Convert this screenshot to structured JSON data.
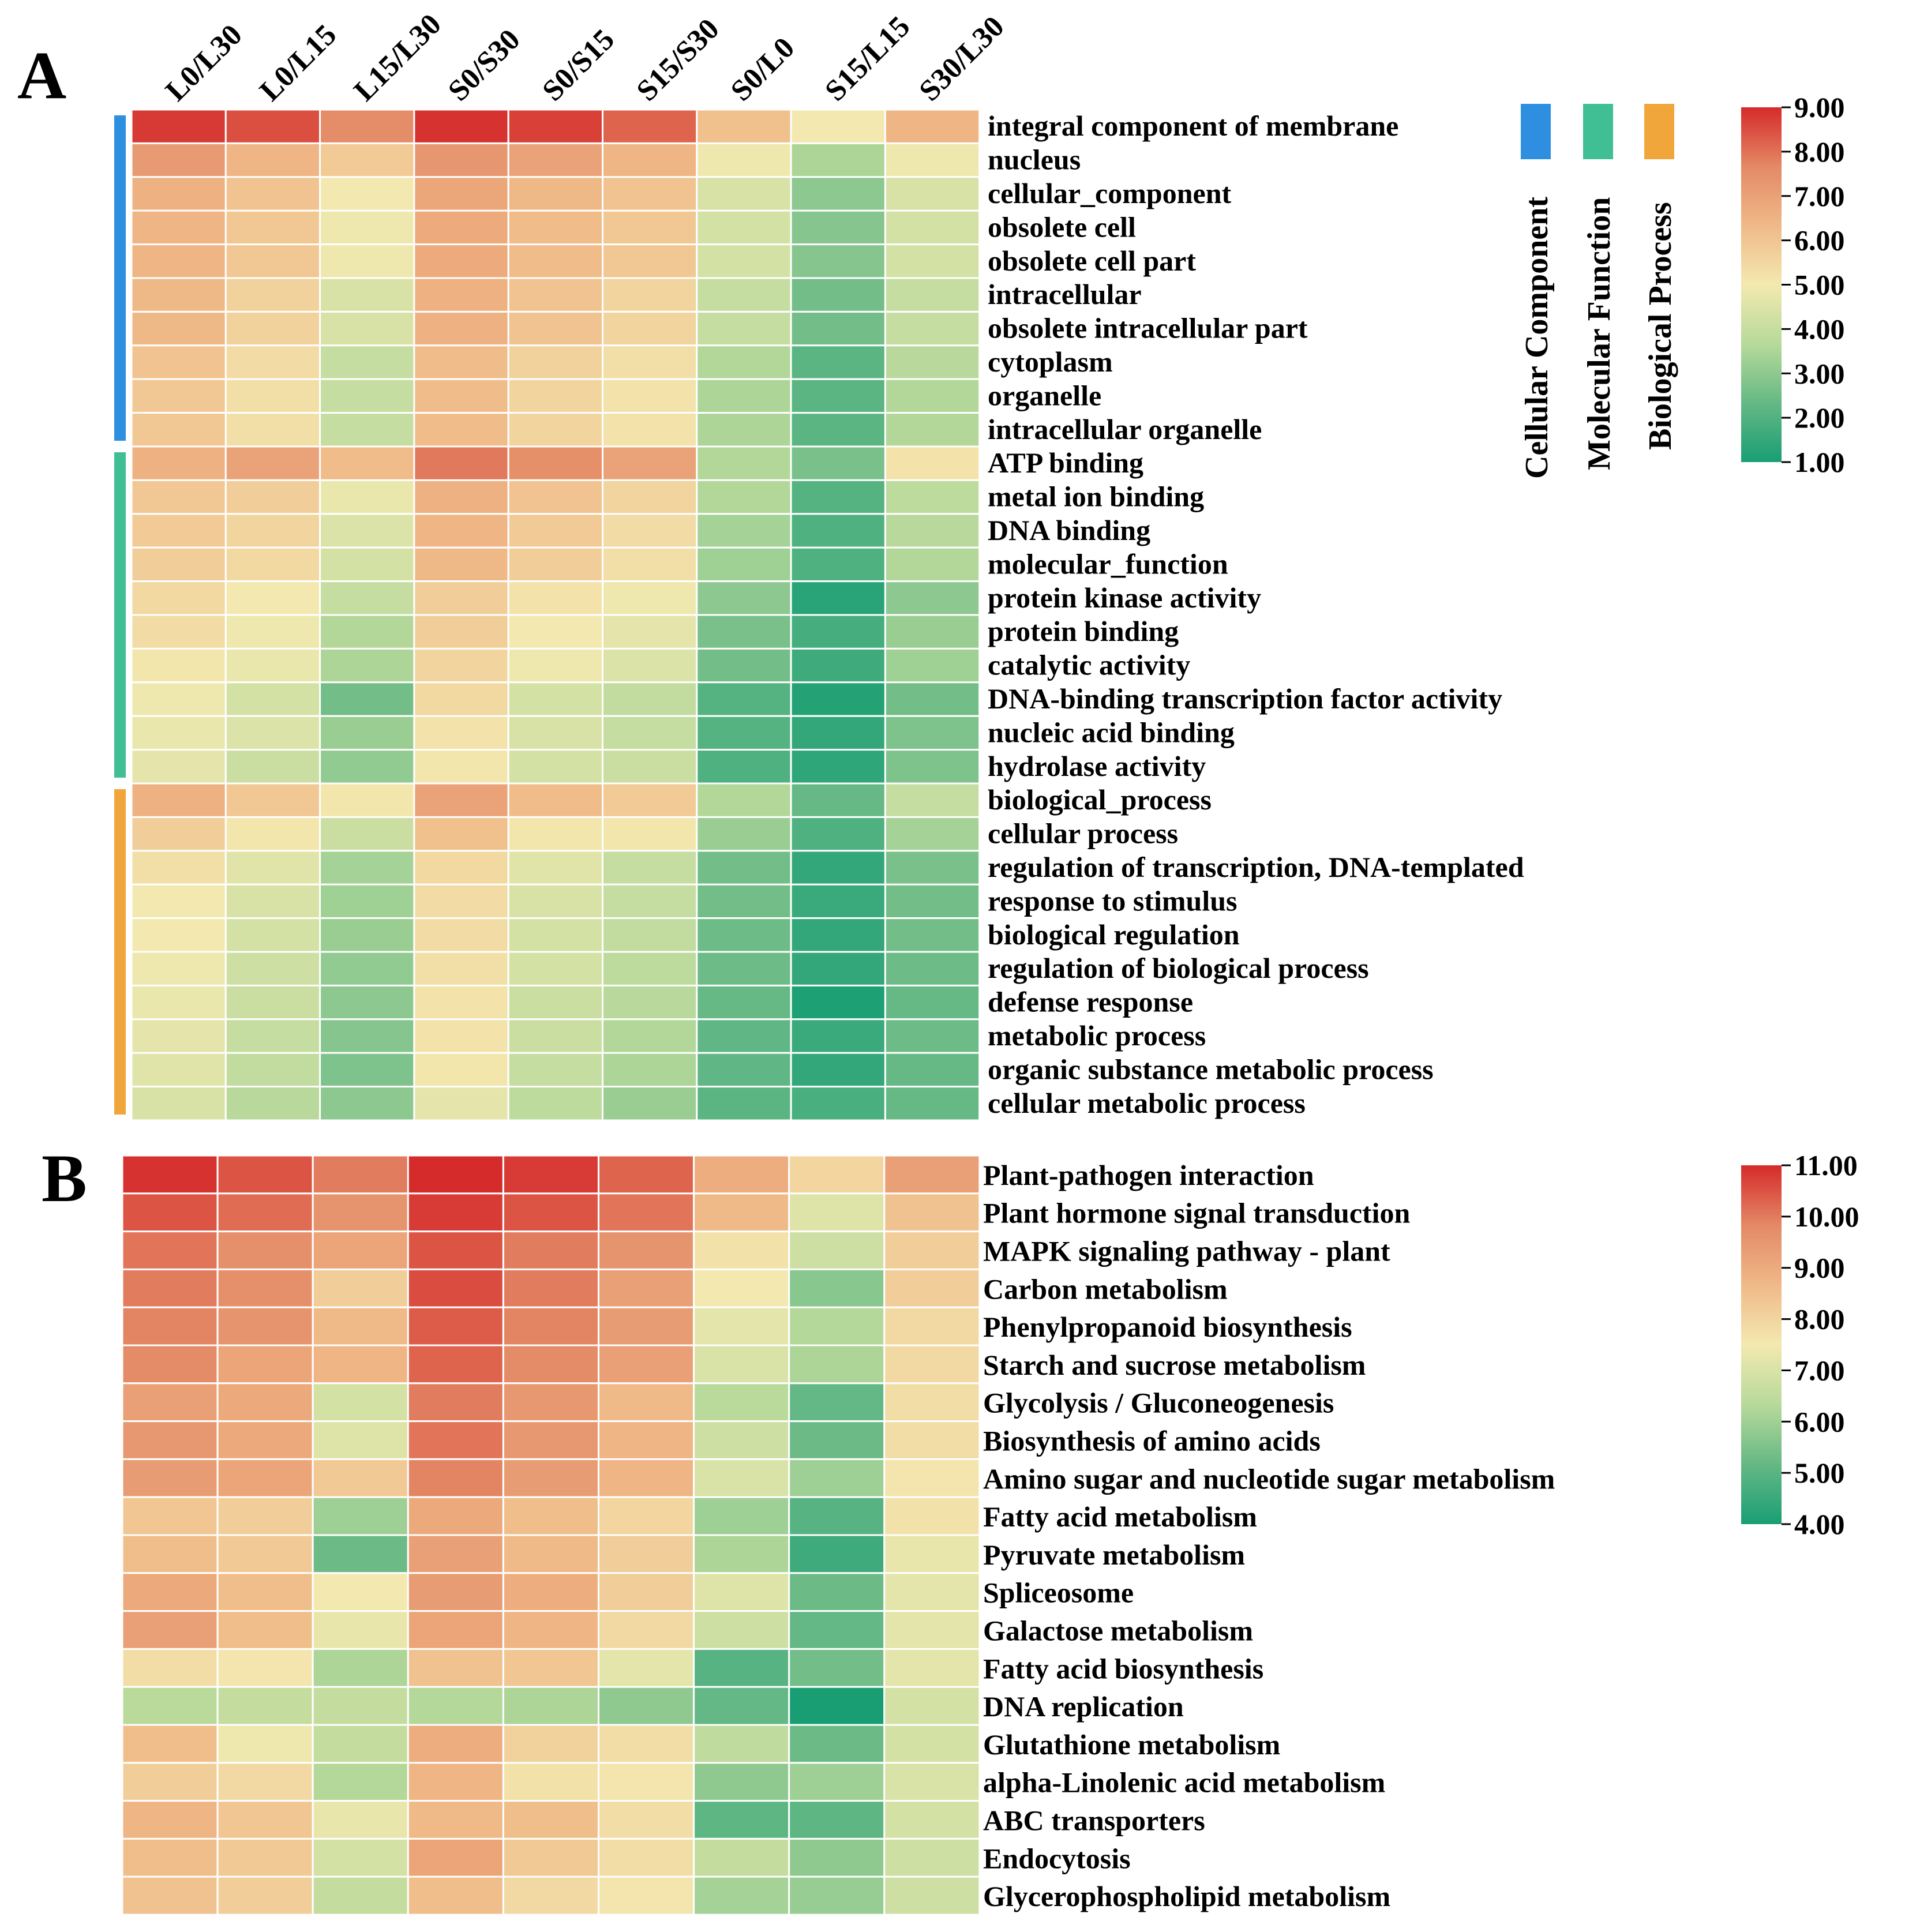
{
  "panels": [
    {
      "letter": "A"
    },
    {
      "letter": "B"
    }
  ],
  "categories_legend": [
    {
      "name": "Cellular Component",
      "color": "#2e8fe0"
    },
    {
      "name": "Molecular Function",
      "color": "#3fbf93"
    },
    {
      "name": "Biological Process",
      "color": "#f0a63a"
    }
  ],
  "colormap": [
    "#199e74",
    "#62b784",
    "#b6d99a",
    "#f3e9b0",
    "#f0bb89",
    "#e48a66",
    "#d52b2b"
  ],
  "chart_data": [
    {
      "type": "heatmap",
      "title": "A",
      "columns": [
        "L0/L30",
        "L0/L15",
        "L15/L30",
        "S0/S30",
        "S0/S15",
        "S15/S30",
        "S0/L0",
        "S15/L15",
        "S30/L30"
      ],
      "rows": [
        {
          "label": "integral component of membrane",
          "category": "Cellular Component",
          "values": [
            8.8,
            8.5,
            7.6,
            8.9,
            8.7,
            8.2,
            6.2,
            5.0,
            6.5
          ]
        },
        {
          "label": "nucleus",
          "category": "Cellular Component",
          "values": [
            7.2,
            6.5,
            5.9,
            7.3,
            7.0,
            6.5,
            4.9,
            3.5,
            4.9
          ]
        },
        {
          "label": "cellular_component",
          "category": "Cellular Component",
          "values": [
            6.6,
            6.1,
            5.0,
            6.9,
            6.4,
            6.1,
            4.4,
            3.0,
            4.4
          ]
        },
        {
          "label": "obsolete cell",
          "category": "Cellular Component",
          "values": [
            6.5,
            6.0,
            4.9,
            6.8,
            6.3,
            6.0,
            4.3,
            2.9,
            4.3
          ]
        },
        {
          "label": "obsolete cell part",
          "category": "Cellular Component",
          "values": [
            6.5,
            6.0,
            4.9,
            6.8,
            6.3,
            6.0,
            4.3,
            2.9,
            4.3
          ]
        },
        {
          "label": "intracellular",
          "category": "Cellular Component",
          "values": [
            6.4,
            5.7,
            4.4,
            6.6,
            6.1,
            5.6,
            4.0,
            2.6,
            4.0
          ]
        },
        {
          "label": "obsolete intracellular part",
          "category": "Cellular Component",
          "values": [
            6.4,
            5.7,
            4.4,
            6.6,
            6.1,
            5.6,
            4.0,
            2.6,
            4.0
          ]
        },
        {
          "label": "cytoplasm",
          "category": "Cellular Component",
          "values": [
            6.1,
            5.4,
            4.0,
            6.3,
            5.7,
            5.3,
            3.6,
            2.2,
            3.7
          ]
        },
        {
          "label": "organelle",
          "category": "Cellular Component",
          "values": [
            6.0,
            5.3,
            4.0,
            6.3,
            5.6,
            5.2,
            3.5,
            2.2,
            3.6
          ]
        },
        {
          "label": "intracellular organelle",
          "category": "Cellular Component",
          "values": [
            6.0,
            5.3,
            4.0,
            6.3,
            5.6,
            5.2,
            3.5,
            2.2,
            3.6
          ]
        },
        {
          "label": "ATP binding",
          "category": "Molecular Function",
          "values": [
            6.6,
            7.0,
            6.3,
            7.9,
            7.5,
            7.0,
            3.6,
            2.7,
            5.2
          ]
        },
        {
          "label": "metal ion binding",
          "category": "Molecular Function",
          "values": [
            6.0,
            5.8,
            4.8,
            6.6,
            6.1,
            5.6,
            3.6,
            2.1,
            3.8
          ]
        },
        {
          "label": "DNA binding",
          "category": "Molecular Function",
          "values": [
            5.9,
            5.6,
            4.5,
            6.5,
            5.9,
            5.4,
            3.4,
            2.0,
            3.7
          ]
        },
        {
          "label": "molecular_function",
          "category": "Molecular Function",
          "values": [
            5.8,
            5.5,
            4.3,
            6.4,
            5.8,
            5.3,
            3.3,
            2.0,
            3.6
          ]
        },
        {
          "label": "protein kinase activity",
          "category": "Molecular Function",
          "values": [
            5.5,
            5.0,
            4.0,
            5.8,
            5.2,
            4.9,
            3.0,
            1.3,
            3.0
          ]
        },
        {
          "label": "protein binding",
          "category": "Molecular Function",
          "values": [
            5.4,
            4.9,
            3.6,
            5.8,
            5.0,
            4.7,
            2.7,
            1.8,
            3.2
          ]
        },
        {
          "label": "catalytic activity",
          "category": "Molecular Function",
          "values": [
            5.1,
            4.8,
            3.5,
            5.6,
            4.9,
            4.5,
            2.6,
            1.7,
            3.3
          ]
        },
        {
          "label": "DNA-binding transcription factor activity",
          "category": "Molecular Function",
          "values": [
            4.9,
            4.3,
            2.6,
            5.5,
            4.3,
            3.9,
            2.1,
            1.2,
            2.6
          ]
        },
        {
          "label": "nucleic acid binding",
          "category": "Molecular Function",
          "values": [
            4.8,
            4.5,
            3.2,
            5.2,
            4.4,
            4.0,
            2.1,
            1.5,
            2.8
          ]
        },
        {
          "label": "hydrolase activity",
          "category": "Molecular Function",
          "values": [
            4.7,
            4.1,
            3.1,
            5.1,
            4.3,
            4.1,
            2.0,
            1.4,
            2.8
          ]
        },
        {
          "label": "biological_process",
          "category": "Biological Process",
          "values": [
            6.6,
            6.0,
            5.1,
            7.0,
            6.3,
            5.9,
            3.6,
            2.4,
            4.0
          ]
        },
        {
          "label": "cellular process",
          "category": "Biological Process",
          "values": [
            5.8,
            5.1,
            4.1,
            6.2,
            5.1,
            5.1,
            3.2,
            2.0,
            3.4
          ]
        },
        {
          "label": "regulation of transcription, DNA-templated",
          "category": "Biological Process",
          "values": [
            5.3,
            4.6,
            3.4,
            5.5,
            4.6,
            4.0,
            2.6,
            1.5,
            2.7
          ]
        },
        {
          "label": "response to stimulus",
          "category": "Biological Process",
          "values": [
            5.0,
            4.4,
            3.3,
            5.4,
            4.4,
            4.0,
            2.6,
            1.6,
            2.6
          ]
        },
        {
          "label": "biological regulation",
          "category": "Biological Process",
          "values": [
            5.0,
            4.3,
            3.2,
            5.4,
            4.3,
            3.9,
            2.5,
            1.5,
            2.6
          ]
        },
        {
          "label": "regulation of biological process",
          "category": "Biological Process",
          "values": [
            4.9,
            4.2,
            3.1,
            5.3,
            4.3,
            3.8,
            2.5,
            1.5,
            2.5
          ]
        },
        {
          "label": "defense response",
          "category": "Biological Process",
          "values": [
            4.8,
            4.1,
            3.0,
            5.2,
            4.1,
            3.7,
            2.4,
            1.1,
            2.4
          ]
        },
        {
          "label": "metabolic process",
          "category": "Biological Process",
          "values": [
            4.7,
            4.0,
            2.9,
            5.2,
            4.1,
            3.6,
            2.3,
            1.6,
            2.5
          ]
        },
        {
          "label": "organic substance metabolic process",
          "category": "Biological Process",
          "values": [
            4.6,
            3.9,
            2.8,
            5.1,
            4.0,
            3.5,
            2.3,
            1.5,
            2.4
          ]
        },
        {
          "label": "cellular metabolic process",
          "category": "Biological Process",
          "values": [
            4.4,
            3.7,
            3.0,
            4.7,
            3.8,
            3.2,
            2.2,
            1.9,
            2.4
          ]
        }
      ],
      "colorbar": {
        "min": 1.0,
        "max": 9.0,
        "ticks": [
          "9.00",
          "8.00",
          "7.00",
          "6.00",
          "5.00",
          "4.00",
          "3.00",
          "2.00",
          "1.00"
        ]
      }
    },
    {
      "type": "heatmap",
      "title": "B",
      "columns": [
        "L0/L30",
        "L0/L15",
        "L15/L30",
        "S0/S30",
        "S0/S15",
        "S15/S30",
        "S0/L0",
        "S15/L15",
        "S30/L30"
      ],
      "rows": [
        {
          "label": "Plant-pathogen interaction",
          "values": [
            10.9,
            10.5,
            10.0,
            11.0,
            10.8,
            10.3,
            9.0,
            8.0,
            9.3
          ]
        },
        {
          "label": "Plant hormone signal transduction",
          "values": [
            10.5,
            10.2,
            9.6,
            10.8,
            10.5,
            10.1,
            8.7,
            7.1,
            8.5
          ]
        },
        {
          "label": "MAPK signaling pathway - plant",
          "values": [
            10.1,
            9.7,
            9.2,
            10.5,
            10.0,
            9.6,
            7.7,
            6.8,
            8.2
          ]
        },
        {
          "label": "Carbon metabolism",
          "values": [
            10.0,
            9.7,
            8.2,
            10.6,
            10.0,
            9.3,
            7.5,
            5.7,
            8.2
          ]
        },
        {
          "label": "Phenylpropanoid biosynthesis",
          "values": [
            9.9,
            9.6,
            8.7,
            10.4,
            9.9,
            9.4,
            7.2,
            6.3,
            7.9
          ]
        },
        {
          "label": "Starch and sucrose metabolism",
          "values": [
            9.8,
            9.2,
            8.8,
            10.3,
            9.8,
            9.3,
            7.0,
            6.2,
            7.9
          ]
        },
        {
          "label": "Glycolysis / Gluconeogenesis",
          "values": [
            9.3,
            9.1,
            6.9,
            10.0,
            9.5,
            8.7,
            6.4,
            5.2,
            7.8
          ]
        },
        {
          "label": "Biosynthesis of amino acids",
          "values": [
            9.5,
            9.1,
            7.1,
            10.1,
            9.5,
            8.8,
            6.8,
            5.3,
            7.8
          ]
        },
        {
          "label": "Amino sugar and nucleotide sugar metabolism",
          "values": [
            9.4,
            9.2,
            8.3,
            9.9,
            9.4,
            8.8,
            7.0,
            6.0,
            7.6
          ]
        },
        {
          "label": "Fatty acid metabolism",
          "values": [
            8.4,
            8.2,
            6.0,
            9.1,
            8.6,
            8.0,
            6.0,
            5.0,
            7.7
          ]
        },
        {
          "label": "Pyruvate metabolism",
          "values": [
            8.6,
            8.3,
            5.3,
            9.3,
            8.7,
            8.2,
            6.2,
            4.6,
            7.3
          ]
        },
        {
          "label": "Spliceosome",
          "values": [
            9.1,
            8.6,
            7.5,
            9.4,
            9.0,
            8.2,
            7.1,
            5.3,
            7.2
          ]
        },
        {
          "label": "Galactose metabolism",
          "values": [
            9.3,
            8.6,
            7.3,
            9.2,
            8.8,
            7.9,
            6.8,
            5.2,
            7.2
          ]
        },
        {
          "label": "Fatty acid biosynthesis",
          "values": [
            7.8,
            7.6,
            6.2,
            8.5,
            8.4,
            7.2,
            5.0,
            5.4,
            7.2
          ]
        },
        {
          "label": "DNA replication",
          "values": [
            6.4,
            6.6,
            6.6,
            6.3,
            6.2,
            5.8,
            5.2,
            4.0,
            6.9
          ]
        },
        {
          "label": "Glutathione metabolism",
          "values": [
            8.6,
            7.4,
            6.6,
            9.0,
            8.1,
            7.8,
            6.5,
            5.3,
            6.9
          ]
        },
        {
          "label": "alpha-Linolenic acid metabolism",
          "values": [
            8.2,
            7.9,
            6.3,
            8.8,
            7.7,
            7.6,
            5.8,
            6.0,
            7.0
          ]
        },
        {
          "label": "ABC transporters",
          "values": [
            8.8,
            8.4,
            7.3,
            8.7,
            8.6,
            7.8,
            5.1,
            5.1,
            6.9
          ]
        },
        {
          "label": "Endocytosis",
          "values": [
            8.6,
            8.3,
            6.9,
            9.2,
            8.3,
            7.8,
            6.6,
            5.8,
            6.8
          ]
        },
        {
          "label": "Glycerophospholipid metabolism",
          "values": [
            8.5,
            8.2,
            6.6,
            8.6,
            7.9,
            7.6,
            6.1,
            5.9,
            6.8
          ]
        }
      ],
      "colorbar": {
        "min": 4.0,
        "max": 11.0,
        "ticks": [
          "11.00",
          "10.00",
          "9.00",
          "8.00",
          "7.00",
          "6.00",
          "5.00",
          "4.00"
        ]
      }
    }
  ]
}
